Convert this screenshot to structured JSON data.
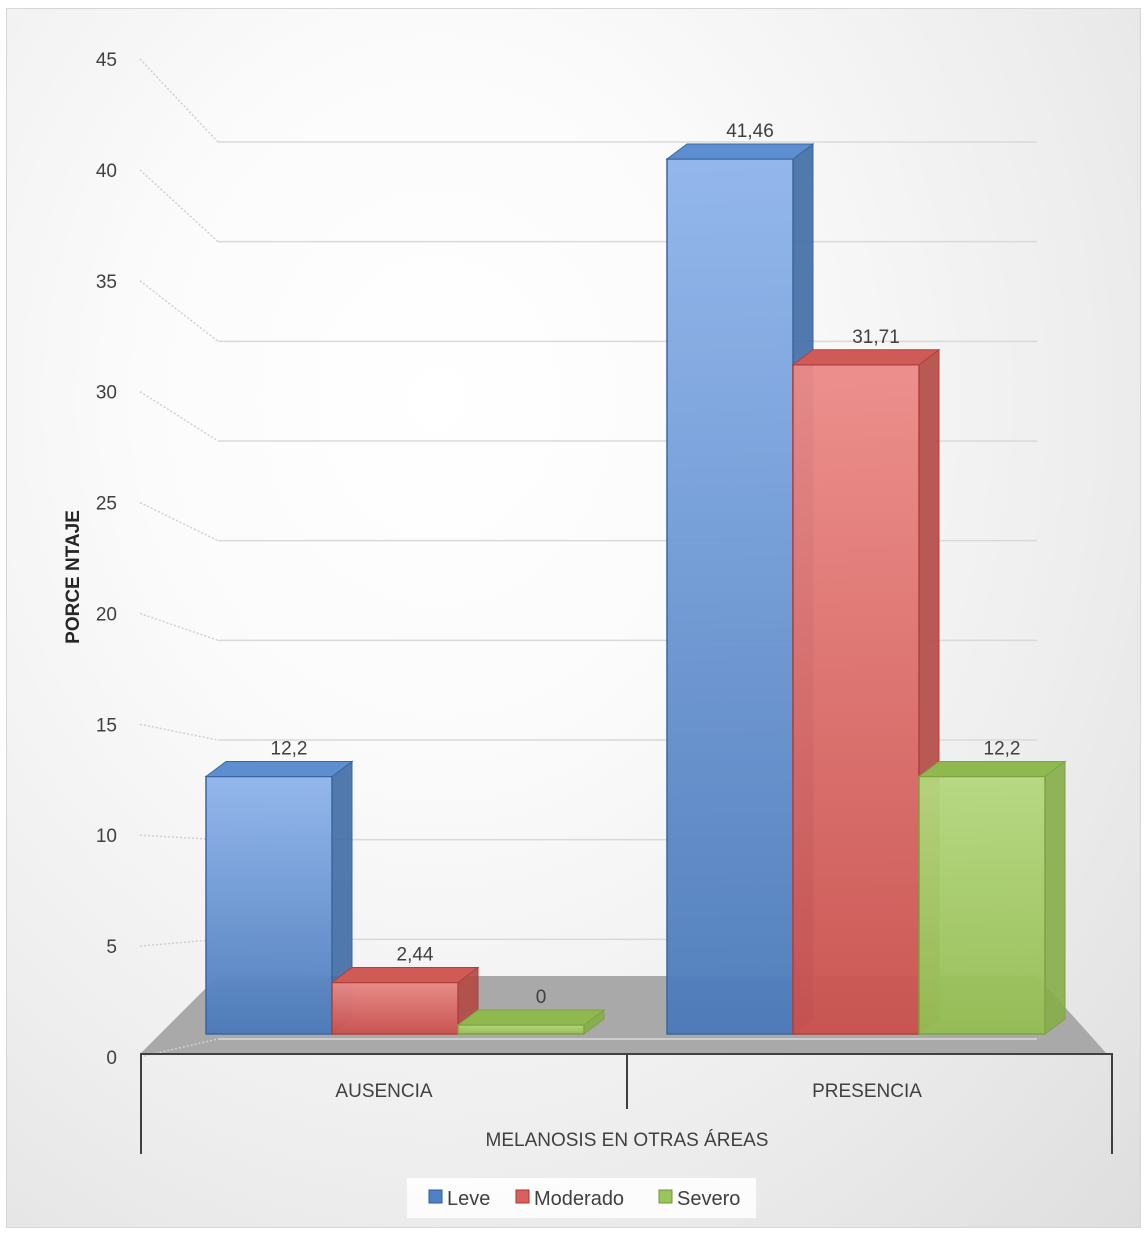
{
  "chart_data": {
    "type": "bar",
    "categories": [
      "AUSENCIA",
      "PRESENCIA"
    ],
    "series": [
      {
        "name": "Leve",
        "values": [
          12.2,
          41.46
        ],
        "labels": [
          "12,2",
          "41,46"
        ],
        "color": "#4f81c6"
      },
      {
        "name": "Moderado",
        "values": [
          2.44,
          31.71
        ],
        "labels": [
          "2,44",
          "31,71"
        ],
        "color": "#d9605d"
      },
      {
        "name": "Severo",
        "values": [
          0,
          12.2
        ],
        "labels": [
          "0",
          "12,2"
        ],
        "color": "#9bc55a"
      }
    ],
    "yticks": [
      "0",
      "5",
      "10",
      "15",
      "20",
      "25",
      "30",
      "35",
      "40",
      "45"
    ],
    "ylim": [
      0,
      45
    ],
    "ylabel": "PORCE NTAJE",
    "xlabel": "MELANOSIS EN OTRAS ÁREAS",
    "grid": true,
    "style": "3d-column",
    "legend_position": "bottom"
  }
}
